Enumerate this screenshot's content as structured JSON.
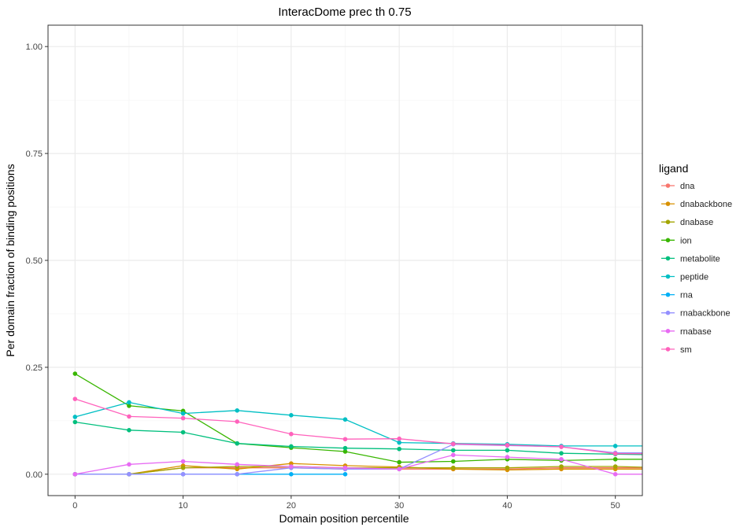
{
  "chart_data": {
    "type": "line",
    "title": "InteracDome prec th 0.75",
    "xlabel": "Domain position percentile",
    "ylabel": "Per domain fraction of binding positions",
    "xlim": [
      -2.5,
      52.5
    ],
    "ylim": [
      -0.05,
      1.05
    ],
    "x_ticks": [
      0,
      10,
      20,
      30,
      40,
      50
    ],
    "y_ticks": [
      0.0,
      0.25,
      0.5,
      0.75,
      1.0
    ],
    "x_tick_labels": [
      "0",
      "10",
      "20",
      "30",
      "40",
      "50"
    ],
    "y_tick_labels": [
      "0.00",
      "0.25",
      "0.50",
      "0.75",
      "1.00"
    ],
    "grid": true,
    "legend": {
      "title": "ligand",
      "position": "right"
    },
    "series": [
      {
        "name": "dna",
        "color": "#F8766D",
        "x": [
          0,
          5,
          10,
          15,
          20,
          25,
          30,
          35,
          40,
          45,
          50,
          55
        ],
        "y": [
          0.0,
          0.0,
          0.015,
          0.015,
          0.015,
          0.012,
          0.012,
          0.012,
          0.012,
          0.015,
          0.015,
          0.015
        ]
      },
      {
        "name": "dnabackbone",
        "color": "#D89000",
        "x": [
          0,
          5,
          10,
          15,
          20,
          25,
          30,
          35,
          40,
          45,
          50,
          55
        ],
        "y": [
          0.0,
          0.0,
          0.02,
          0.012,
          0.025,
          0.02,
          0.017,
          0.012,
          0.01,
          0.012,
          0.012,
          0.012
        ]
      },
      {
        "name": "dnabase",
        "color": "#A3A500",
        "x": [
          0,
          5,
          10,
          15,
          20,
          25,
          30,
          35,
          40,
          45,
          50,
          55
        ],
        "y": [
          0.0,
          0.0,
          0.015,
          0.018,
          0.018,
          0.015,
          0.015,
          0.015,
          0.015,
          0.018,
          0.018,
          0.015
        ]
      },
      {
        "name": "ion",
        "color": "#39B600",
        "x": [
          0,
          5,
          10,
          15,
          20,
          25,
          30,
          35,
          40,
          45,
          50,
          55
        ],
        "y": [
          0.235,
          0.16,
          0.148,
          0.072,
          0.062,
          0.053,
          0.028,
          0.03,
          0.035,
          0.032,
          0.035,
          0.035
        ]
      },
      {
        "name": "metabolite",
        "color": "#00BF7D",
        "x": [
          0,
          5,
          10,
          15,
          20,
          25,
          30,
          35,
          40,
          45,
          50,
          55
        ],
        "y": [
          0.122,
          0.103,
          0.098,
          0.072,
          0.065,
          0.061,
          0.059,
          0.056,
          0.056,
          0.049,
          0.047,
          0.045
        ]
      },
      {
        "name": "peptide",
        "color": "#00BFC4",
        "x": [
          0,
          5,
          10,
          15,
          20,
          25,
          30,
          35,
          40,
          45,
          50,
          55
        ],
        "y": [
          0.134,
          0.168,
          0.142,
          0.149,
          0.138,
          0.128,
          0.074,
          0.072,
          0.07,
          0.066,
          0.066,
          0.066
        ]
      },
      {
        "name": "rna",
        "color": "#00B0F6",
        "x": [
          0,
          5,
          10,
          15,
          20,
          25
        ],
        "y": [
          0.0,
          0.0,
          0.0,
          0.0,
          0.0,
          0.0
        ]
      },
      {
        "name": "rnabackbone",
        "color": "#9590FF",
        "x": [
          0,
          5,
          10,
          15,
          20,
          25,
          30,
          35,
          40,
          45,
          50,
          55
        ],
        "y": [
          0.0,
          0.0,
          0.0,
          0.0,
          0.015,
          0.012,
          0.012,
          0.07,
          0.067,
          0.064,
          0.05,
          0.05
        ]
      },
      {
        "name": "rnabase",
        "color": "#E76BF3",
        "x": [
          0,
          5,
          10,
          15,
          20,
          25,
          30,
          35,
          40,
          45,
          50,
          55
        ],
        "y": [
          0.0,
          0.023,
          0.03,
          0.023,
          0.018,
          0.015,
          0.012,
          0.045,
          0.04,
          0.035,
          0.0,
          0.0
        ]
      },
      {
        "name": "sm",
        "color": "#FF62BC",
        "x": [
          0,
          5,
          10,
          15,
          20,
          25,
          30,
          35,
          40,
          45,
          50,
          55
        ],
        "y": [
          0.176,
          0.135,
          0.131,
          0.123,
          0.094,
          0.082,
          0.083,
          0.071,
          0.068,
          0.064,
          0.048,
          0.048
        ]
      }
    ]
  }
}
